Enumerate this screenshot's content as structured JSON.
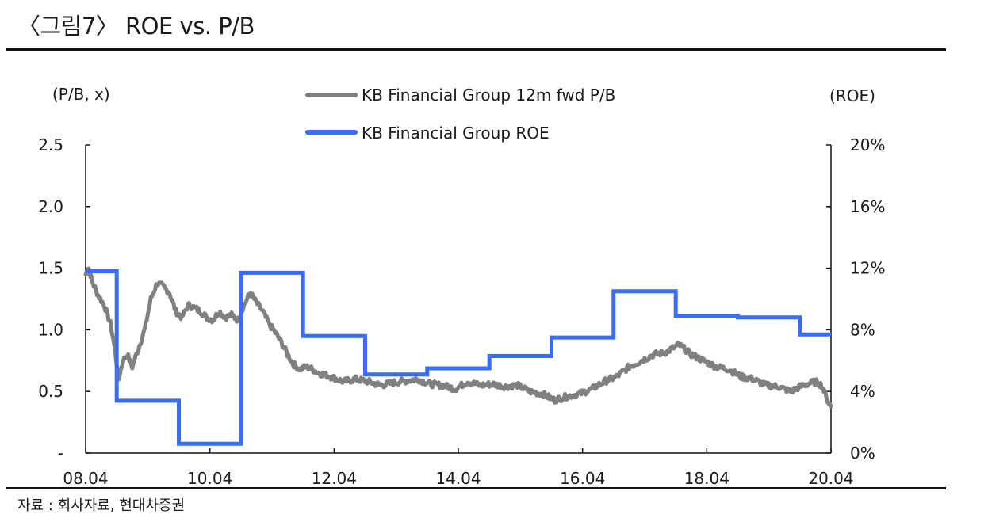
{
  "figure": {
    "title": "〈그림7〉 ROE vs. P/B",
    "source": "자료 : 회사자료, 현대차증권"
  },
  "chart_data": {
    "type": "line",
    "left_axis_unit": "(P/B, x)",
    "right_axis_unit": "(ROE)",
    "left_ticks": [
      "-",
      "0.5",
      "1.0",
      "1.5",
      "2.0",
      "2.5"
    ],
    "right_ticks": [
      "0%",
      "4%",
      "8%",
      "12%",
      "16%",
      "20%"
    ],
    "x_ticks": [
      "08.04",
      "10.04",
      "12.04",
      "14.04",
      "16.04",
      "18.04",
      "20.04"
    ],
    "xlim": [
      2008.25,
      2020.25
    ],
    "ylim_left": [
      0,
      2.5
    ],
    "ylim_right": [
      0,
      20
    ],
    "legend_position": "top-center",
    "colors": {
      "pb": "#808080",
      "roe": "#3a6cf4"
    },
    "series": [
      {
        "name": "KB Financial Group 12m fwd P/B",
        "axis": "left",
        "color": "#808080",
        "points": [
          [
            2008.25,
            1.45
          ],
          [
            2008.3,
            1.5
          ],
          [
            2008.35,
            1.4
          ],
          [
            2008.45,
            1.28
          ],
          [
            2008.55,
            1.2
          ],
          [
            2008.65,
            1.05
          ],
          [
            2008.72,
            0.85
          ],
          [
            2008.78,
            0.6
          ],
          [
            2008.85,
            0.75
          ],
          [
            2008.92,
            0.8
          ],
          [
            2009.0,
            0.7
          ],
          [
            2009.1,
            0.85
          ],
          [
            2009.2,
            1.0
          ],
          [
            2009.3,
            1.25
          ],
          [
            2009.4,
            1.38
          ],
          [
            2009.5,
            1.35
          ],
          [
            2009.6,
            1.3
          ],
          [
            2009.7,
            1.15
          ],
          [
            2009.8,
            1.1
          ],
          [
            2009.9,
            1.2
          ],
          [
            2010.0,
            1.18
          ],
          [
            2010.1,
            1.15
          ],
          [
            2010.2,
            1.1
          ],
          [
            2010.3,
            1.08
          ],
          [
            2010.4,
            1.15
          ],
          [
            2010.5,
            1.1
          ],
          [
            2010.6,
            1.12
          ],
          [
            2010.7,
            1.08
          ],
          [
            2010.8,
            1.2
          ],
          [
            2010.9,
            1.3
          ],
          [
            2011.0,
            1.22
          ],
          [
            2011.1,
            1.15
          ],
          [
            2011.2,
            1.05
          ],
          [
            2011.3,
            0.98
          ],
          [
            2011.4,
            0.9
          ],
          [
            2011.5,
            0.8
          ],
          [
            2011.6,
            0.72
          ],
          [
            2011.7,
            0.68
          ],
          [
            2011.8,
            0.7
          ],
          [
            2011.9,
            0.68
          ],
          [
            2012.0,
            0.65
          ],
          [
            2012.2,
            0.62
          ],
          [
            2012.4,
            0.58
          ],
          [
            2012.6,
            0.6
          ],
          [
            2012.8,
            0.58
          ],
          [
            2013.0,
            0.55
          ],
          [
            2013.3,
            0.58
          ],
          [
            2013.6,
            0.6
          ],
          [
            2013.8,
            0.56
          ],
          [
            2014.0,
            0.55
          ],
          [
            2014.2,
            0.52
          ],
          [
            2014.4,
            0.58
          ],
          [
            2014.6,
            0.55
          ],
          [
            2014.8,
            0.56
          ],
          [
            2015.0,
            0.54
          ],
          [
            2015.2,
            0.55
          ],
          [
            2015.4,
            0.5
          ],
          [
            2015.6,
            0.48
          ],
          [
            2015.8,
            0.43
          ],
          [
            2016.0,
            0.46
          ],
          [
            2016.2,
            0.48
          ],
          [
            2016.4,
            0.52
          ],
          [
            2016.6,
            0.58
          ],
          [
            2016.8,
            0.62
          ],
          [
            2017.0,
            0.7
          ],
          [
            2017.2,
            0.75
          ],
          [
            2017.4,
            0.8
          ],
          [
            2017.6,
            0.82
          ],
          [
            2017.8,
            0.88
          ],
          [
            2018.0,
            0.8
          ],
          [
            2018.2,
            0.75
          ],
          [
            2018.4,
            0.7
          ],
          [
            2018.6,
            0.68
          ],
          [
            2018.8,
            0.62
          ],
          [
            2019.0,
            0.6
          ],
          [
            2019.2,
            0.55
          ],
          [
            2019.4,
            0.54
          ],
          [
            2019.6,
            0.5
          ],
          [
            2019.8,
            0.55
          ],
          [
            2020.0,
            0.58
          ],
          [
            2020.1,
            0.55
          ],
          [
            2020.2,
            0.42
          ],
          [
            2020.25,
            0.38
          ]
        ]
      },
      {
        "name": "KB Financial Group ROE",
        "axis": "right",
        "color": "#3a6cf4",
        "steps": [
          [
            2008.25,
            11.8
          ],
          [
            2008.75,
            3.4
          ],
          [
            2009.75,
            0.6
          ],
          [
            2010.75,
            11.7
          ],
          [
            2011.75,
            7.6
          ],
          [
            2012.75,
            5.1
          ],
          [
            2013.75,
            5.5
          ],
          [
            2014.75,
            6.3
          ],
          [
            2015.75,
            7.5
          ],
          [
            2016.75,
            10.5
          ],
          [
            2017.75,
            8.9
          ],
          [
            2018.75,
            8.8
          ],
          [
            2019.75,
            7.7
          ]
        ],
        "end": 2020.25
      }
    ]
  }
}
